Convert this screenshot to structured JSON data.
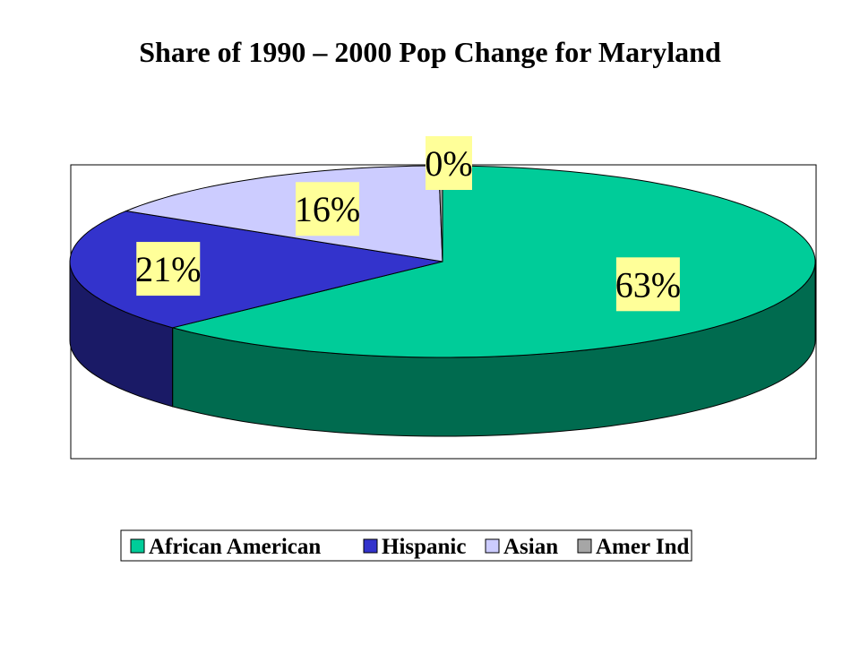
{
  "chart_data": {
    "type": "pie",
    "title": "Share of 1990 – 2000 Pop Change for Maryland",
    "categories": [
      "African American",
      "Hispanic",
      "Asian",
      "Amer Ind"
    ],
    "values": [
      63,
      21,
      16,
      0
    ],
    "data_labels": [
      "63%",
      "21%",
      "16%",
      "0%"
    ],
    "colors": [
      "#00CC99",
      "#3333CC",
      "#CCCCFF",
      "#A6A6A6"
    ],
    "side_colors": [
      "#006B4F",
      "#1A1A66",
      "#66667F",
      "#5A5A5A"
    ],
    "label_bg": "#FFFF99",
    "legend_position": "bottom",
    "style": "3d"
  }
}
